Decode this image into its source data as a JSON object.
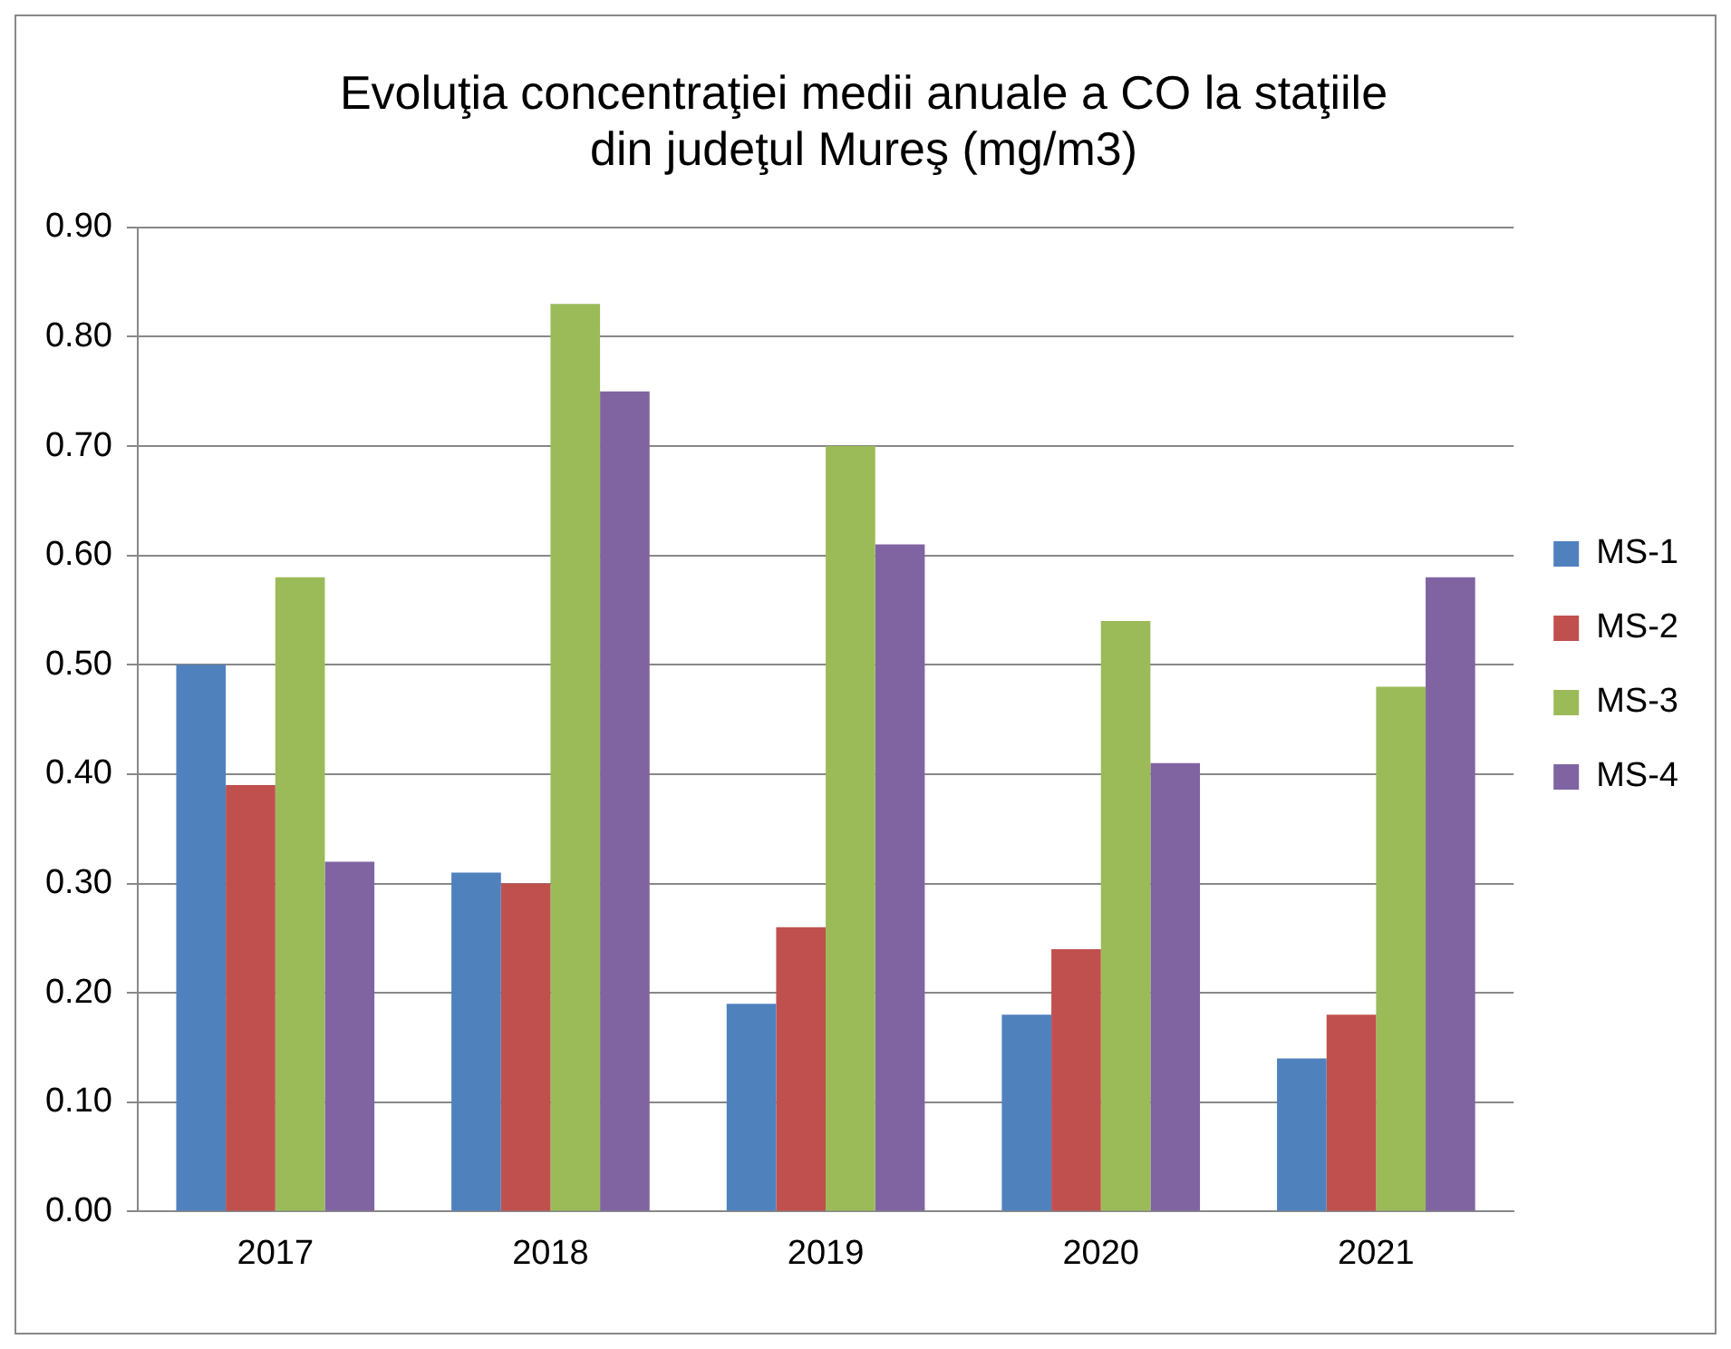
{
  "chart_data": {
    "type": "bar",
    "title": "Evoluţia concentraţiei medii anuale a CO la staţiile\ndin judeţul Mureş (mg/m3)",
    "categories": [
      "2017",
      "2018",
      "2019",
      "2020",
      "2021"
    ],
    "series": [
      {
        "name": "MS-1",
        "color": "#4f81bd",
        "values": [
          0.5,
          0.31,
          0.19,
          0.18,
          0.14
        ]
      },
      {
        "name": "MS-2",
        "color": "#c0504d",
        "values": [
          0.39,
          0.3,
          0.26,
          0.24,
          0.18
        ]
      },
      {
        "name": "MS-3",
        "color": "#9bbb59",
        "values": [
          0.58,
          0.83,
          0.7,
          0.54,
          0.48
        ]
      },
      {
        "name": "MS-4",
        "color": "#8064a2",
        "values": [
          0.32,
          0.75,
          0.61,
          0.41,
          0.58
        ]
      }
    ],
    "ylim": [
      0,
      0.9
    ],
    "yticks": [
      {
        "value": 0,
        "label": "0.00"
      },
      {
        "value": 0.1,
        "label": "0.10"
      },
      {
        "value": 0.2,
        "label": "0.20"
      },
      {
        "value": 0.3,
        "label": "0.30"
      },
      {
        "value": 0.4,
        "label": "0.40"
      },
      {
        "value": 0.5,
        "label": "0.50"
      },
      {
        "value": 0.6,
        "label": "0.60"
      },
      {
        "value": 0.7,
        "label": "0.70"
      },
      {
        "value": 0.8,
        "label": "0.80"
      },
      {
        "value": 0.9,
        "label": "0.90"
      }
    ],
    "grid": "y",
    "legend": "right"
  }
}
